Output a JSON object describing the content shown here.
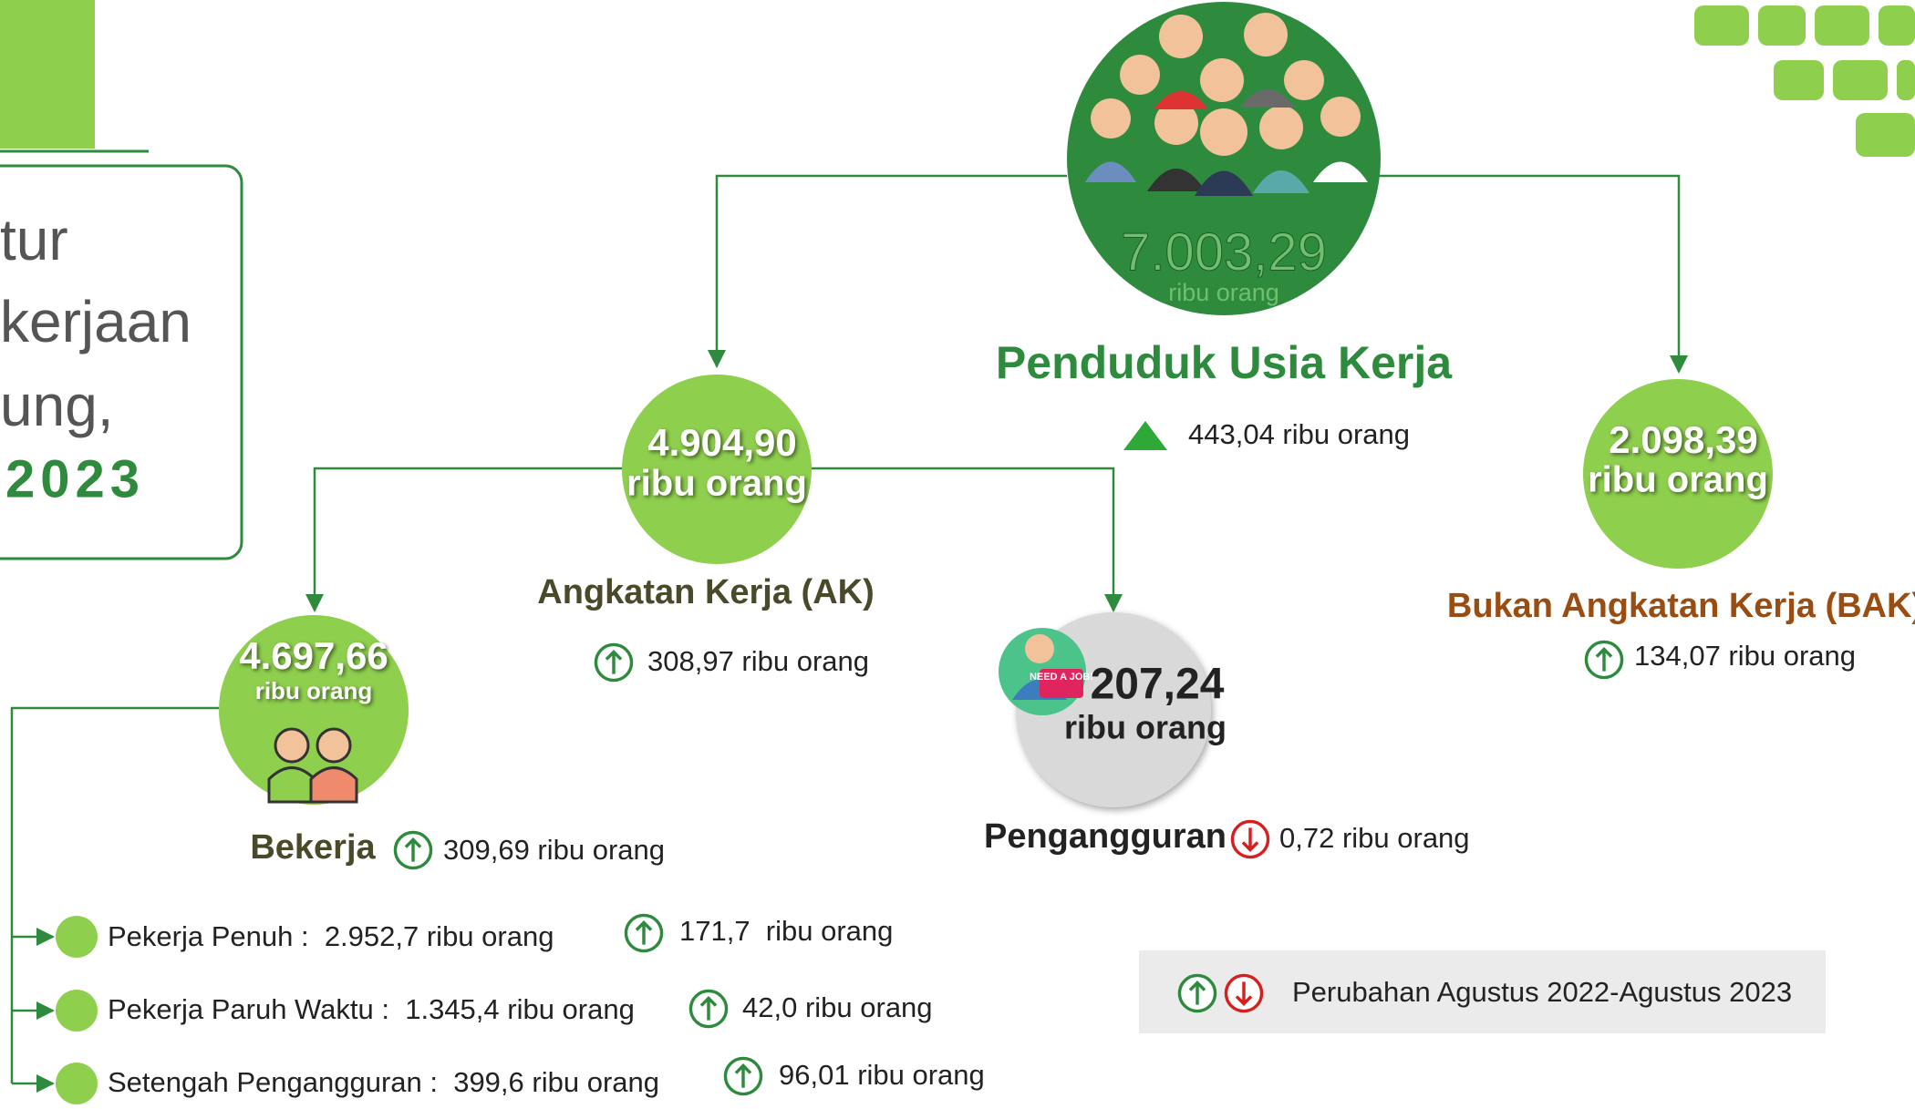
{
  "title": {
    "lines": [
      "tur",
      "kerjaan",
      "ung,"
    ],
    "year": "2023"
  },
  "population": {
    "value": "7.003,29",
    "unit": "ribu orang",
    "label": "Penduduk Usia Kerja",
    "change": "443,04 ribu orang"
  },
  "labor_force": {
    "value": "4.904,90",
    "unit": "ribu orang",
    "label": "Angkatan Kerja (AK)",
    "change": "308,97 ribu orang"
  },
  "not_labor_force": {
    "value": "2.098,39",
    "unit": "ribu orang",
    "label": "Bukan Angkatan Kerja (BAK)",
    "change": "134,07 ribu orang"
  },
  "employed": {
    "value": "4.697,66",
    "unit": "ribu orang",
    "label": "Bekerja",
    "change": "309,69 ribu orang"
  },
  "unemployed": {
    "value": "207,24",
    "unit": "ribu orang",
    "label": "Pengangguran",
    "change": "0,72 ribu orang",
    "badge": "NEED A JOB!"
  },
  "employed_breakdown": [
    {
      "label": "Pekerja Penuh :  2.952,7 ribu orang",
      "change": "171,7  ribu orang"
    },
    {
      "label": "Pekerja Paruh Waktu :  1.345,4 ribu orang",
      "change": "42,0 ribu orang"
    },
    {
      "label": "Setengah Pengangguran :  399,6 ribu orang",
      "change": "96,01 ribu orang"
    }
  ],
  "legend": "Perubahan Agustus 2022-Agustus 2023"
}
